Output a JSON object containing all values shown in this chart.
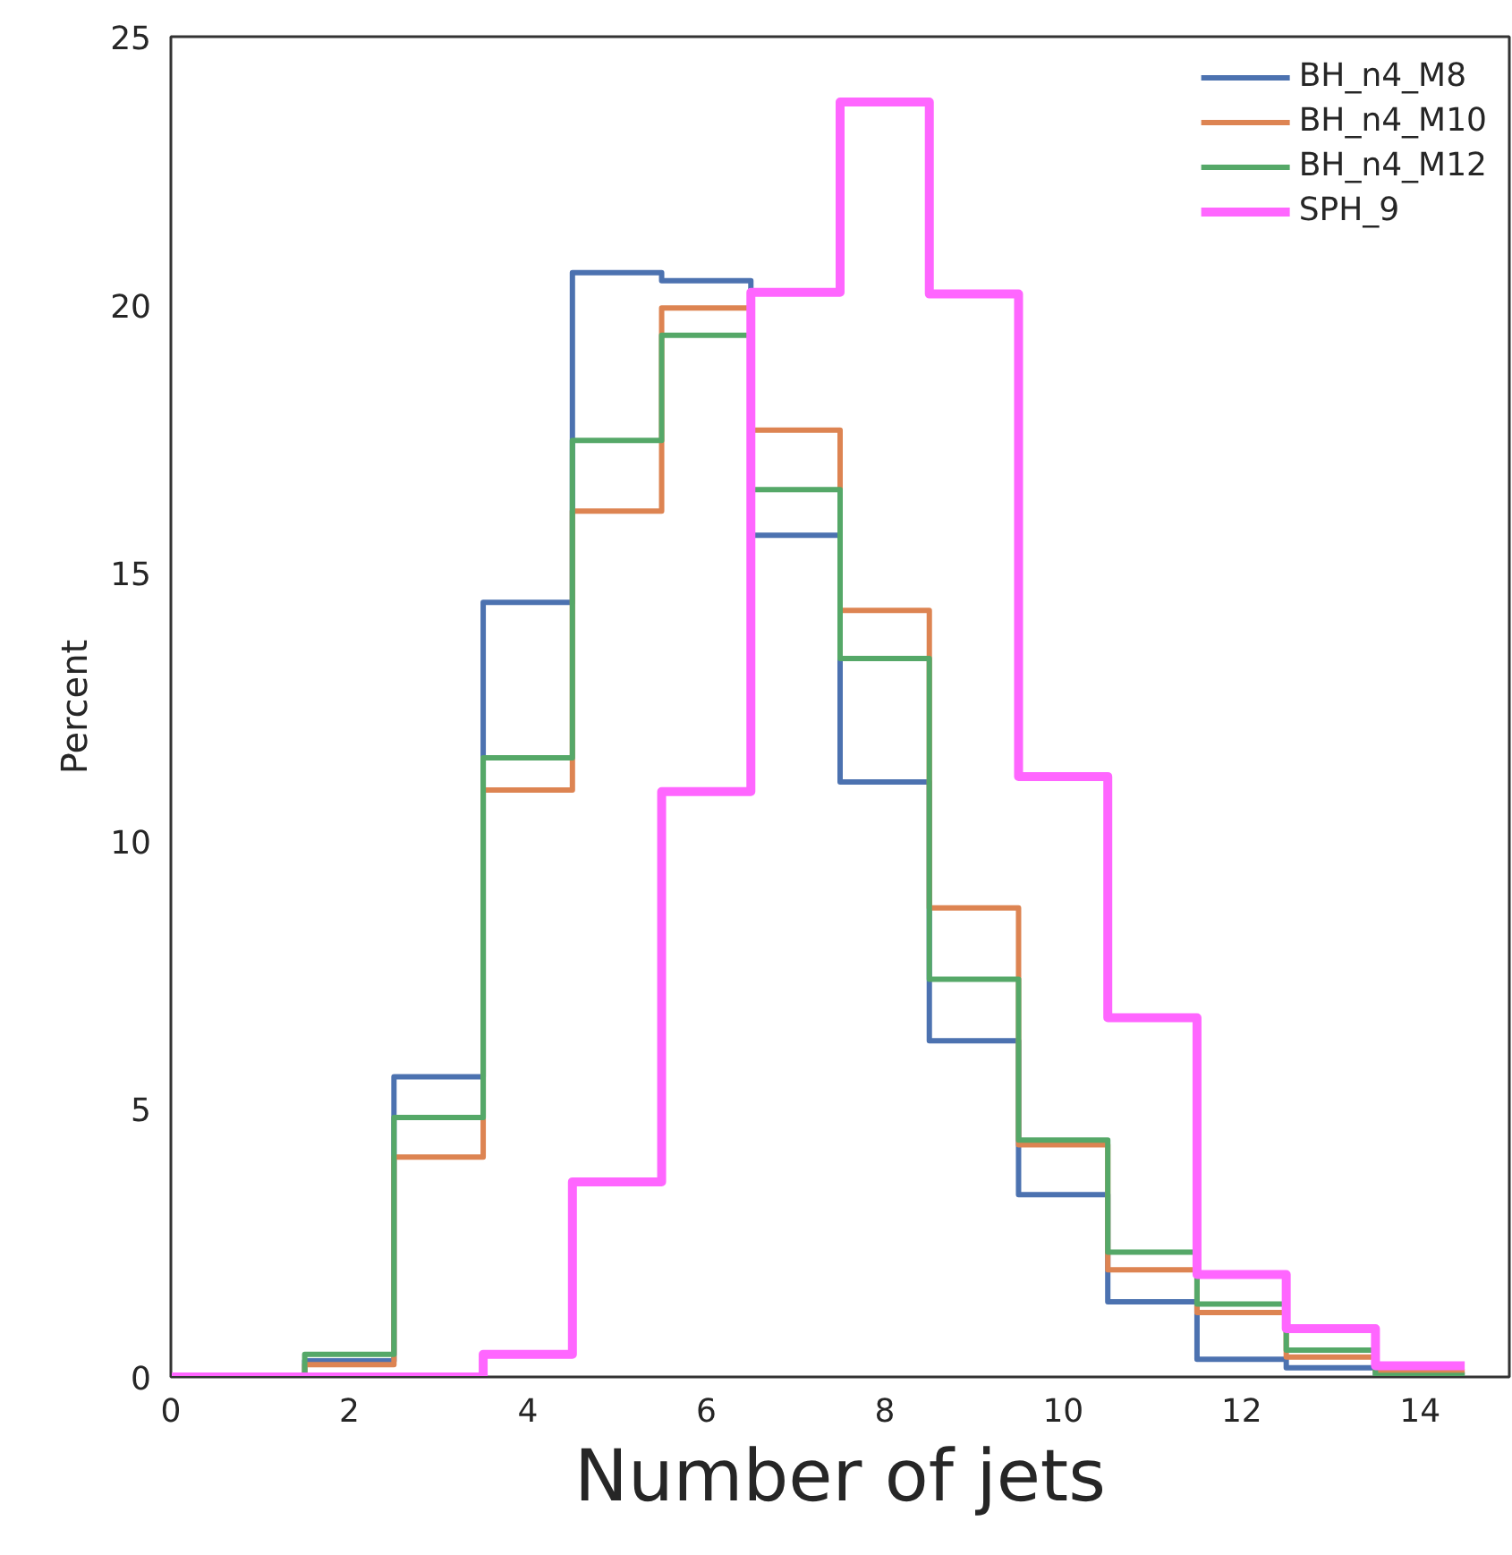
{
  "chart_data": {
    "type": "histogram",
    "xlabel": "Number of jets",
    "ylabel": "Percent",
    "bins": [
      0,
      1.5,
      2.5,
      3.5,
      4.5,
      5.5,
      6.5,
      7.5,
      8.5,
      9.5,
      10.5,
      11.5,
      12.5,
      13.5,
      14.5
    ],
    "series": [
      {
        "name": "BH_n4_M8",
        "color": "#4c72b0",
        "values": [
          0,
          0.3,
          5.6,
          14.45,
          20.6,
          20.45,
          15.7,
          11.1,
          6.27,
          3.4,
          1.4,
          0.33,
          0.17,
          0.05
        ]
      },
      {
        "name": "BH_n4_M10",
        "color": "#dd8452",
        "values": [
          0,
          0.23,
          4.1,
          10.95,
          16.15,
          19.94,
          17.66,
          14.3,
          8.75,
          4.33,
          2.0,
          1.2,
          0.37,
          0.1
        ]
      },
      {
        "name": "BH_n4_M12",
        "color": "#55a868",
        "values": [
          0,
          0.42,
          4.84,
          11.55,
          17.47,
          19.43,
          16.55,
          13.4,
          7.42,
          4.42,
          2.33,
          1.36,
          0.5,
          0.03
        ]
      },
      {
        "name": "SPH_9",
        "color": "#ff66ff",
        "values": [
          0,
          0,
          0,
          0.42,
          3.64,
          10.92,
          20.23,
          23.78,
          20.2,
          11.2,
          6.7,
          1.91,
          0.9,
          0.21
        ]
      }
    ],
    "xlim": [
      0,
      15
    ],
    "ylim": [
      0,
      25
    ],
    "xticks": [
      0,
      2,
      4,
      6,
      8,
      10,
      12,
      14
    ],
    "yticks": [
      0,
      5,
      10,
      15,
      20,
      25
    ],
    "grid": false,
    "legend": "top right"
  }
}
